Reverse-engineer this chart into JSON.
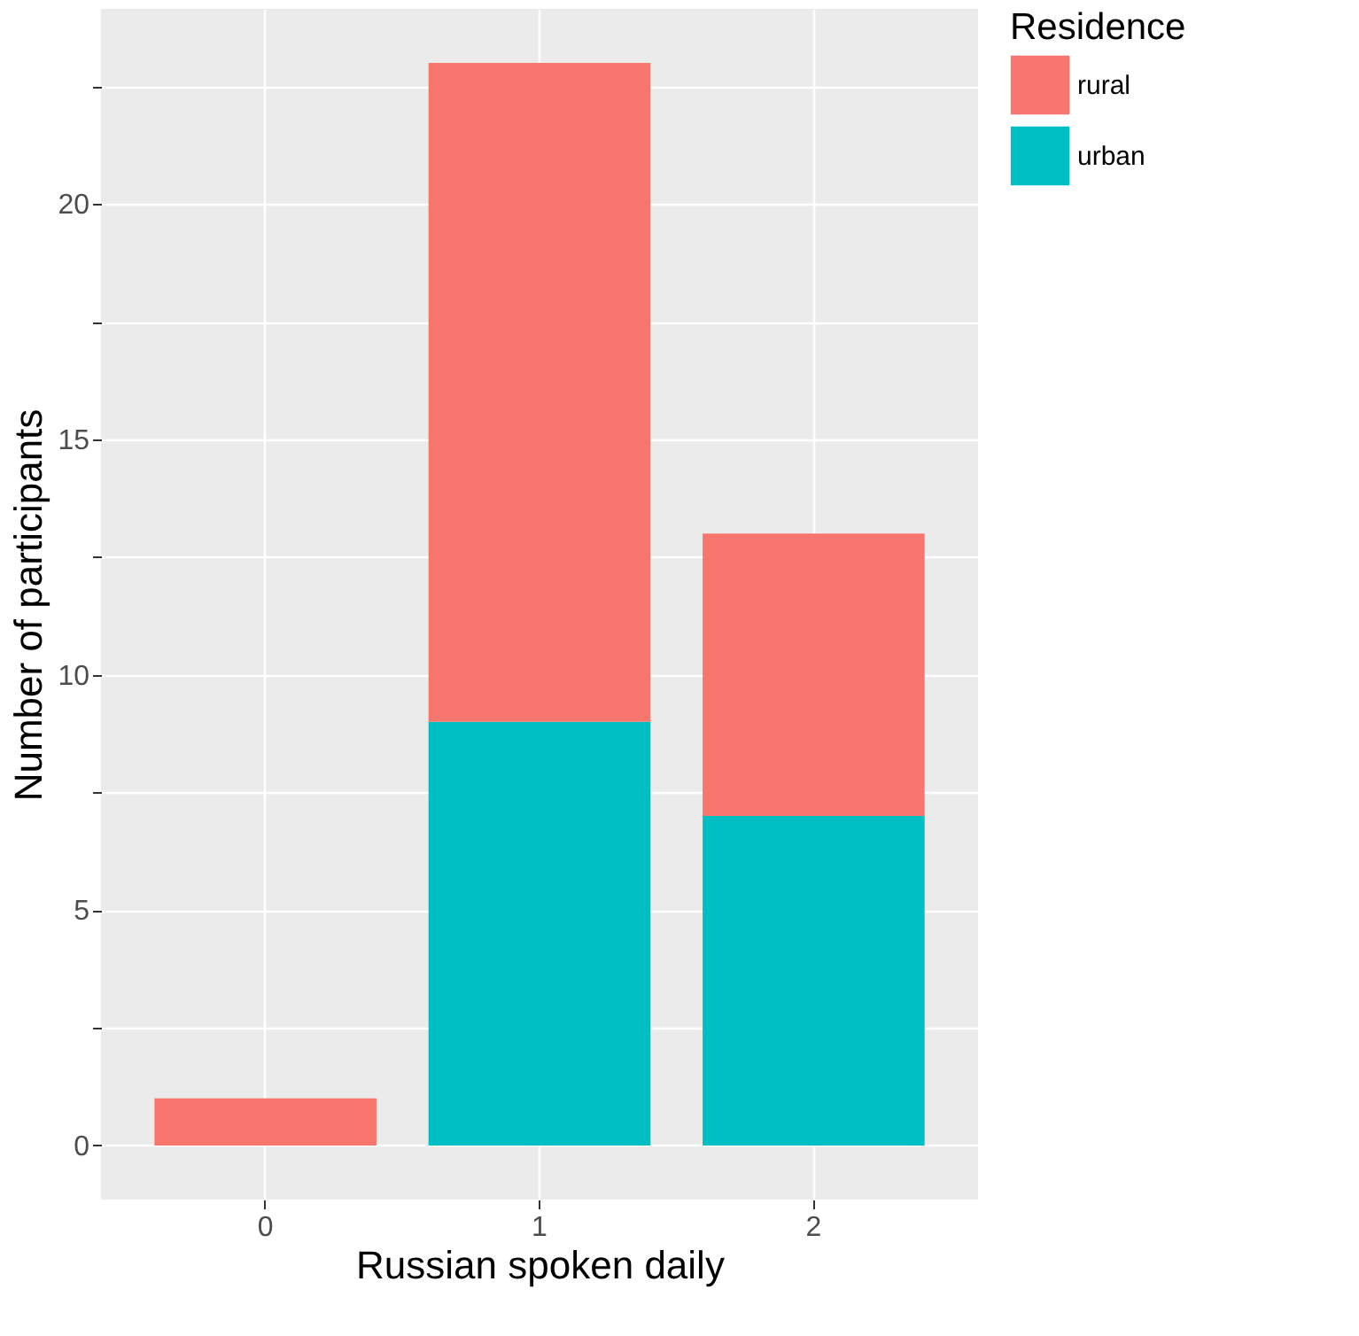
{
  "chart_data": {
    "type": "bar",
    "stacked": true,
    "xlabel": "Russian spoken daily",
    "ylabel": "Number of participants",
    "legend_title": "Residence",
    "categories": [
      "0",
      "1",
      "2"
    ],
    "series": [
      {
        "name": "urban",
        "color": "#00bfc4",
        "values": [
          null,
          9,
          7
        ]
      },
      {
        "name": "rural",
        "color": "#f8766d",
        "values": [
          1,
          14,
          6
        ]
      }
    ],
    "ylim": [
      -1.15,
      24.15
    ],
    "yticks": [
      0,
      {
        "value": 2.5,
        "label": null
      },
      5,
      {
        "value": 7.5,
        "label": null
      },
      10,
      {
        "value": 12.5,
        "label": null
      },
      15,
      {
        "value": 17.5,
        "label": null
      },
      20,
      {
        "value": 22.5,
        "label": null
      }
    ],
    "grid": true,
    "legend": "right"
  }
}
